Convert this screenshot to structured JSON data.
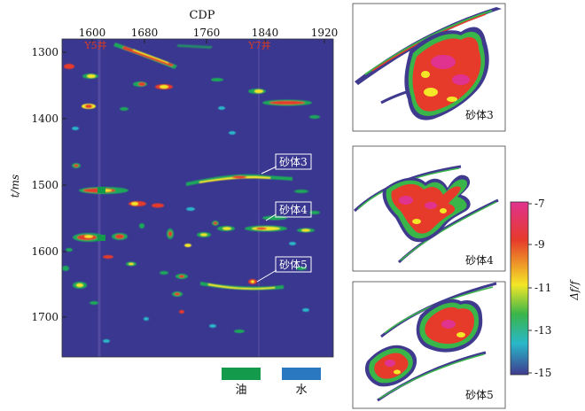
{
  "main_section": {
    "x_axis_title": "CDP",
    "x_ticks": [
      "1600",
      "1680",
      "1760",
      "1840",
      "1920"
    ],
    "y_axis_title": "t/ms",
    "y_ticks": [
      "1300",
      "1400",
      "1500",
      "1600",
      "1700"
    ],
    "well_labels": [
      "Y5井",
      "Y7井"
    ],
    "sand_labels": [
      "砂体3",
      "砂体4",
      "砂体5"
    ]
  },
  "legend": {
    "items": [
      {
        "label": "油",
        "color": "#149a4b"
      },
      {
        "label": "水",
        "color": "#2a78c0"
      }
    ]
  },
  "insets": [
    {
      "label": "砂体3"
    },
    {
      "label": "砂体4"
    },
    {
      "label": "砂体5"
    }
  ],
  "colorbar": {
    "title": "Δf/f",
    "ticks": [
      "-7",
      "-9",
      "-11",
      "-13",
      "-15"
    ],
    "colors": [
      "#e0338f",
      "#e63a2a",
      "#f3e728",
      "#3ab54a",
      "#29b7c9",
      "#3f3a8e"
    ]
  },
  "palette": {
    "background": "#3a3790",
    "well_red": "#d93a20"
  }
}
